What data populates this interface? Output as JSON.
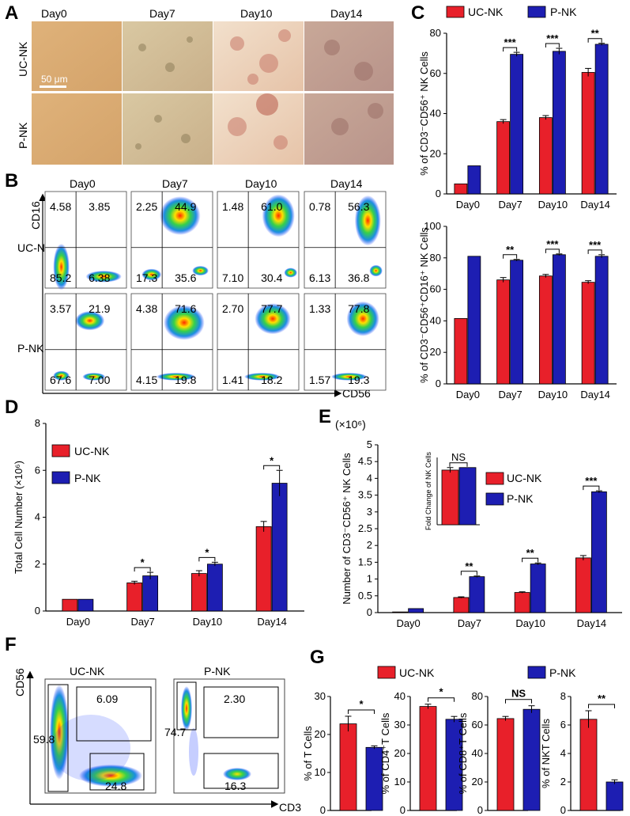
{
  "colors": {
    "uc": "#e8202a",
    "p": "#1d1eb2",
    "axis": "#000000"
  },
  "panel_letters": [
    "A",
    "B",
    "C",
    "D",
    "E",
    "F",
    "G"
  ],
  "panel_a": {
    "days": [
      "Day0",
      "Day7",
      "Day10",
      "Day14"
    ],
    "rows": [
      "UC-NK",
      "P-NK"
    ],
    "scale": "50 μm"
  },
  "panel_b": {
    "days": [
      "Day0",
      "Day7",
      "Day10",
      "Day14"
    ],
    "rows": [
      "UC-NK",
      "P-NK"
    ],
    "y_axis": "CD16",
    "x_axis": "CD56",
    "uc": [
      [
        "4.58",
        "3.85",
        "85.2",
        "6.38"
      ],
      [
        "2.25",
        "44.9",
        "17.3",
        "35.6"
      ],
      [
        "1.48",
        "61.0",
        "7.10",
        "30.4"
      ],
      [
        "0.78",
        "56.3",
        "6.13",
        "36.8"
      ]
    ],
    "p": [
      [
        "3.57",
        "21.9",
        "67.6",
        "7.00"
      ],
      [
        "4.38",
        "71.6",
        "4.15",
        "19.8"
      ],
      [
        "2.70",
        "77.7",
        "1.41",
        "18.2"
      ],
      [
        "1.33",
        "77.8",
        "1.57",
        "19.3"
      ]
    ]
  },
  "panel_f": {
    "titles": [
      "UC-NK",
      "P-NK"
    ],
    "y_axis": "CD56",
    "x_axis": "CD3",
    "uc": [
      "59.8",
      "6.09",
      "24.8"
    ],
    "p": [
      "74.7",
      "2.30",
      "16.3"
    ]
  },
  "chart_data": [
    {
      "id": "C-top",
      "type": "bar",
      "legend": [
        "UC-NK",
        "P-NK"
      ],
      "categories": [
        "Day0",
        "Day7",
        "Day10",
        "Day14"
      ],
      "ylabel": "% of CD3⁻CD56⁺ NK Cells",
      "ylim": [
        0,
        80
      ],
      "yticks": [
        "0",
        "20",
        "40",
        "60",
        "80"
      ],
      "series": [
        {
          "name": "UC-NK",
          "values": [
            5,
            36,
            38,
            60.5
          ],
          "errors": [
            0,
            1,
            1,
            2
          ]
        },
        {
          "name": "P-NK",
          "values": [
            14,
            69.5,
            71,
            74.5
          ],
          "errors": [
            0,
            1,
            1.5,
            0.5
          ]
        }
      ],
      "significance": [
        "",
        "***",
        "***",
        "**"
      ]
    },
    {
      "id": "C-bottom",
      "type": "bar",
      "categories": [
        "Day0",
        "Day7",
        "Day10",
        "Day14"
      ],
      "ylabel": "% of CD3⁻CD56⁺CD16⁺ NK Cells",
      "ylim": [
        0,
        100
      ],
      "yticks": [
        "0",
        "20",
        "40",
        "60",
        "80",
        "100"
      ],
      "series": [
        {
          "name": "UC-NK",
          "values": [
            41.5,
            66,
            68.5,
            64.5
          ],
          "errors": [
            0,
            1.5,
            1,
            1
          ]
        },
        {
          "name": "P-NK",
          "values": [
            81,
            78.5,
            82,
            81
          ],
          "errors": [
            0,
            0.5,
            0.5,
            1
          ]
        }
      ],
      "significance": [
        "",
        "**",
        "***",
        "***"
      ]
    },
    {
      "id": "D",
      "type": "bar",
      "legend": [
        "UC-NK",
        "P-NK"
      ],
      "categories": [
        "Day0",
        "Day7",
        "Day10",
        "Day14"
      ],
      "ylabel": "Total Cell Number (×10⁶)",
      "ylim": [
        0,
        8
      ],
      "yticks": [
        "0",
        "2",
        "4",
        "6",
        "8"
      ],
      "series": [
        {
          "name": "UC-NK",
          "values": [
            0.5,
            1.2,
            1.6,
            3.6
          ],
          "errors": [
            0,
            0.07,
            0.12,
            0.22
          ]
        },
        {
          "name": "P-NK",
          "values": [
            0.5,
            1.5,
            2.0,
            5.45
          ],
          "errors": [
            0,
            0.15,
            0.08,
            0.55
          ]
        }
      ],
      "significance": [
        "",
        "*",
        "*",
        "*"
      ]
    },
    {
      "id": "E",
      "type": "bar",
      "unit": "(×10⁶)",
      "legend": [
        "UC-NK",
        "P-NK"
      ],
      "categories": [
        "Day0",
        "Day7",
        "Day10",
        "Day14"
      ],
      "ylabel": "Number of CD3⁻CD56⁺ NK Cells",
      "ylim": [
        0,
        5
      ],
      "yticks": [
        "0",
        "0.5",
        "1",
        "1.5",
        "2",
        "2.5",
        "3",
        "3.5",
        "4",
        "4.5",
        "5"
      ],
      "series": [
        {
          "name": "UC-NK",
          "values": [
            0.02,
            0.45,
            0.6,
            1.63
          ],
          "errors": [
            0,
            0.02,
            0.02,
            0.07
          ]
        },
        {
          "name": "P-NK",
          "values": [
            0.12,
            1.07,
            1.45,
            3.6
          ],
          "errors": [
            0,
            0.02,
            0.03,
            0.03
          ]
        }
      ],
      "significance": [
        "",
        "**",
        "**",
        "***"
      ],
      "inset": {
        "ylabel": "Fold Change of NK Cells",
        "values": [
          32.5,
          34.0
        ],
        "errors": [
          1.5,
          0
        ],
        "ylim": [
          0,
          40
        ],
        "significance": "NS"
      }
    },
    {
      "id": "G",
      "type": "bar",
      "legend": [
        "UC-NK",
        "P-NK"
      ],
      "panels": [
        {
          "ylabel": "% of T Cells",
          "ylim": [
            0,
            30
          ],
          "yticks": [
            "0",
            "10",
            "20",
            "30"
          ],
          "values": [
            22.8,
            16.6
          ],
          "errors": [
            2.0,
            0.4
          ],
          "significance": "*"
        },
        {
          "ylabel": "% of CD4⁺T Cells",
          "ylim": [
            0,
            40
          ],
          "yticks": [
            "0",
            "10",
            "20",
            "30",
            "40"
          ],
          "values": [
            36.5,
            32.0
          ],
          "errors": [
            0.8,
            1.0
          ],
          "significance": "*"
        },
        {
          "ylabel": "% of CD8⁺T Cells",
          "ylim": [
            0,
            80
          ],
          "yticks": [
            "0",
            "20",
            "40",
            "60",
            "80"
          ],
          "values": [
            64.5,
            71.0
          ],
          "errors": [
            1.5,
            2.5
          ],
          "significance": "NS"
        },
        {
          "ylabel": "% of NKT Cells",
          "ylim": [
            0,
            8
          ],
          "yticks": [
            "0",
            "2",
            "4",
            "6",
            "8"
          ],
          "values": [
            6.4,
            2.0
          ],
          "errors": [
            0.6,
            0.15
          ],
          "significance": "**"
        }
      ]
    }
  ]
}
